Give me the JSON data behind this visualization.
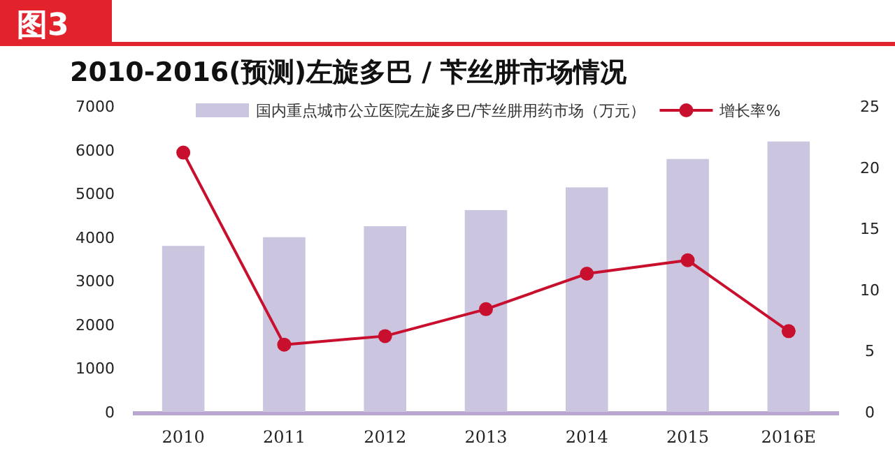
{
  "chart_data": {
    "type": "bar",
    "title": "2010-2016(预测)左旋多巴 / 苄丝肼市场情况",
    "annotations": [
      "图3"
    ],
    "categories": [
      "2010",
      "2011",
      "2012",
      "2013",
      "2014",
      "2015",
      "2016E"
    ],
    "series": [
      {
        "name": "国内重点城市公立医院左旋多巴/苄丝肼用药市场（万元）",
        "color": "#cbc5e0",
        "values": [
          3800,
          4000,
          4250,
          4620,
          5140,
          5790,
          6190
        ]
      },
      {
        "name": "增长率%",
        "type": "line",
        "axis": "y2",
        "color": "#c8102e",
        "values": [
          21.2,
          5.5,
          6.2,
          8.4,
          11.3,
          12.4,
          6.6
        ]
      }
    ],
    "ylim": [
      0,
      7000
    ],
    "yticks": [
      0,
      1000,
      2000,
      3000,
      4000,
      5000,
      6000,
      7000
    ],
    "y2lim": [
      0,
      25
    ],
    "y2ticks": [
      0,
      5,
      10,
      15,
      20,
      25
    ],
    "legend": "top",
    "marker": "circle"
  }
}
